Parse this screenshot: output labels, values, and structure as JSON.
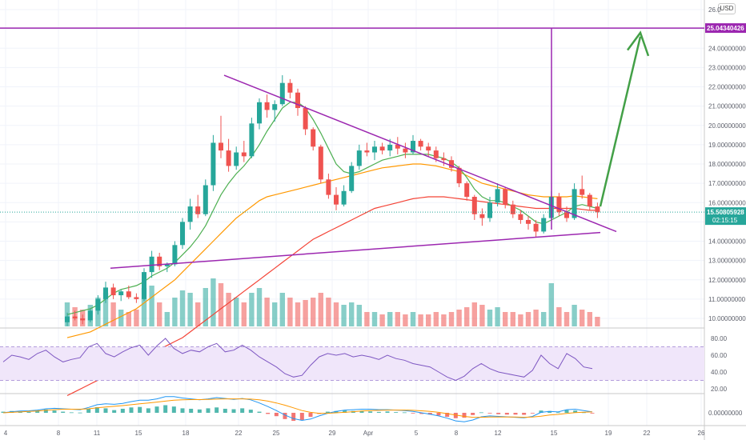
{
  "currency_badge": "USD",
  "price_axis_labels": [
    "26.0",
    "24.00000000",
    "23.00000000",
    "22.00000000",
    "21.00000000",
    "20.00000000",
    "19.00000000",
    "18.00000000",
    "17.00000000",
    "16.00000000",
    "14.00000000",
    "13.00000000",
    "12.00000000",
    "11.00000000",
    "10.00000000"
  ],
  "time_axis_labels": [
    "4",
    "8",
    "11",
    "15",
    "18",
    "22",
    "25",
    "29",
    "Apr",
    "5",
    "8",
    "12",
    "15",
    "19",
    "22",
    "26"
  ],
  "resistance_label": "25.04340426",
  "last_price": "15.50805928",
  "countdown": "02:15:15",
  "rsi_axis_labels": [
    "80.00",
    "60.00",
    "40.00",
    "20.00"
  ],
  "macd_axis_labels": [
    "0.00000000"
  ],
  "colors": {
    "up": "#26a69a",
    "down": "#ef5350",
    "ma_fast": "#4caf50",
    "ma_mid": "#ff9800",
    "ma_slow": "#f44336",
    "trend": "#9c27b0",
    "arrow": "#43a047",
    "rsi": "#7e57c2",
    "rsi_band": "#f0e6fa",
    "price_tag": "#26a69a",
    "level_tag": "#9c27b0"
  },
  "chart_data": {
    "type": "candlestick",
    "price_range": [
      9.8,
      26.2
    ],
    "candles": [
      [
        9.8,
        10.3,
        9.6,
        10.1
      ],
      [
        10.1,
        10.4,
        9.9,
        10.0
      ],
      [
        10.0,
        10.2,
        9.7,
        9.9
      ],
      [
        9.9,
        10.5,
        9.8,
        10.4
      ],
      [
        10.4,
        11.2,
        10.2,
        11.0
      ],
      [
        11.0,
        11.9,
        10.8,
        11.6
      ],
      [
        11.6,
        11.8,
        11.0,
        11.2
      ],
      [
        11.2,
        11.5,
        10.9,
        11.4
      ],
      [
        11.4,
        11.7,
        11.0,
        11.1
      ],
      [
        11.1,
        11.3,
        10.8,
        11.0
      ],
      [
        11.0,
        12.6,
        10.9,
        12.4
      ],
      [
        12.4,
        13.5,
        12.1,
        13.2
      ],
      [
        13.2,
        13.4,
        12.5,
        12.7
      ],
      [
        12.7,
        12.9,
        12.4,
        12.8
      ],
      [
        12.8,
        14.0,
        12.7,
        13.8
      ],
      [
        13.8,
        15.2,
        13.6,
        15.0
      ],
      [
        15.0,
        16.2,
        14.6,
        15.8
      ],
      [
        15.8,
        16.4,
        15.2,
        15.4
      ],
      [
        15.4,
        17.2,
        15.3,
        16.9
      ],
      [
        16.9,
        19.5,
        16.6,
        19.1
      ],
      [
        19.1,
        20.5,
        18.3,
        18.7
      ],
      [
        18.7,
        19.3,
        17.6,
        17.9
      ],
      [
        17.9,
        18.9,
        17.7,
        18.6
      ],
      [
        18.6,
        19.2,
        18.1,
        18.4
      ],
      [
        18.4,
        20.4,
        18.3,
        20.1
      ],
      [
        20.1,
        21.4,
        19.8,
        21.2
      ],
      [
        21.2,
        21.6,
        20.4,
        20.8
      ],
      [
        20.8,
        21.3,
        20.2,
        21.1
      ],
      [
        21.1,
        22.6,
        21.0,
        22.2
      ],
      [
        22.2,
        22.4,
        21.4,
        21.7
      ],
      [
        21.7,
        21.9,
        20.5,
        20.9
      ],
      [
        20.9,
        21.0,
        19.5,
        19.8
      ],
      [
        19.8,
        19.9,
        18.7,
        18.9
      ],
      [
        18.9,
        19.0,
        17.0,
        17.2
      ],
      [
        17.2,
        17.5,
        16.2,
        16.4
      ],
      [
        16.4,
        16.8,
        15.6,
        15.9
      ],
      [
        15.9,
        16.9,
        15.8,
        16.6
      ],
      [
        16.6,
        18.1,
        16.5,
        17.9
      ],
      [
        17.9,
        19.0,
        17.7,
        18.7
      ],
      [
        18.7,
        19.1,
        18.4,
        18.6
      ],
      [
        18.6,
        19.2,
        18.2,
        18.9
      ],
      [
        18.9,
        19.1,
        18.5,
        18.7
      ],
      [
        18.7,
        19.3,
        18.4,
        19.0
      ],
      [
        19.0,
        19.4,
        18.5,
        18.8
      ],
      [
        18.8,
        19.1,
        18.3,
        18.6
      ],
      [
        18.6,
        19.5,
        18.5,
        19.2
      ],
      [
        19.2,
        19.3,
        18.7,
        18.9
      ],
      [
        18.9,
        19.1,
        18.4,
        18.7
      ],
      [
        18.7,
        18.9,
        18.1,
        18.3
      ],
      [
        18.3,
        18.6,
        17.9,
        18.2
      ],
      [
        18.2,
        18.4,
        17.6,
        17.8
      ],
      [
        17.8,
        17.9,
        16.8,
        17.0
      ],
      [
        17.0,
        17.1,
        16.1,
        16.3
      ],
      [
        16.3,
        16.4,
        15.1,
        15.4
      ],
      [
        15.4,
        15.7,
        14.8,
        15.2
      ],
      [
        15.2,
        16.3,
        15.0,
        16.0
      ],
      [
        16.0,
        17.0,
        15.8,
        16.7
      ],
      [
        16.7,
        16.8,
        15.7,
        15.9
      ],
      [
        15.9,
        16.1,
        15.2,
        15.4
      ],
      [
        15.4,
        15.6,
        14.9,
        15.1
      ],
      [
        15.1,
        15.3,
        14.6,
        14.9
      ],
      [
        14.9,
        15.1,
        14.2,
        14.5
      ],
      [
        14.5,
        15.4,
        14.4,
        15.2
      ],
      [
        15.2,
        16.6,
        15.1,
        16.3
      ],
      [
        16.3,
        16.5,
        15.3,
        15.5
      ],
      [
        15.5,
        15.8,
        15.0,
        15.2
      ],
      [
        15.2,
        17.0,
        15.1,
        16.7
      ],
      [
        16.7,
        17.4,
        16.2,
        16.4
      ],
      [
        16.4,
        16.5,
        15.6,
        15.8
      ],
      [
        15.8,
        16.0,
        15.2,
        15.5
      ]
    ],
    "ma_fast": [
      10.2,
      10.3,
      10.4,
      10.5,
      10.7,
      11.0,
      11.3,
      11.5,
      11.6,
      11.7,
      11.9,
      12.2,
      12.4,
      12.6,
      12.9,
      13.3,
      13.7,
      14.2,
      14.8,
      15.6,
      16.4,
      17.0,
      17.5,
      17.9,
      18.4,
      19.0,
      19.7,
      20.3,
      20.9,
      21.2,
      21.2,
      20.9,
      20.3,
      19.6,
      18.8,
      18.0,
      17.6,
      17.5,
      17.6,
      17.8,
      18.0,
      18.2,
      18.3,
      18.4,
      18.5,
      18.5,
      18.5,
      18.5,
      18.4,
      18.3,
      18.1,
      17.8,
      17.3,
      16.7,
      16.3,
      16.1,
      16.1,
      16.0,
      15.8,
      15.6,
      15.3,
      15.0,
      14.9,
      15.1,
      15.3,
      15.5,
      15.8,
      15.9,
      15.8,
      15.7
    ],
    "ma_mid": [
      9.0,
      9.1,
      9.2,
      9.3,
      9.5,
      9.7,
      9.9,
      10.1,
      10.3,
      10.5,
      10.8,
      11.1,
      11.4,
      11.7,
      12.0,
      12.4,
      12.8,
      13.2,
      13.6,
      14.0,
      14.4,
      14.8,
      15.2,
      15.5,
      15.8,
      16.1,
      16.3,
      16.4,
      16.5,
      16.6,
      16.7,
      16.8,
      16.9,
      17.0,
      17.1,
      17.2,
      17.3,
      17.4,
      17.5,
      17.6,
      17.7,
      17.8,
      17.85,
      17.9,
      17.95,
      18.0,
      18.0,
      17.95,
      17.9,
      17.8,
      17.7,
      17.6,
      17.4,
      17.2,
      17.0,
      16.9,
      16.8,
      16.7,
      16.6,
      16.5,
      16.4,
      16.35,
      16.3,
      16.3,
      16.3,
      16.3,
      16.35,
      16.3,
      16.25,
      16.2
    ],
    "ma_slow": [
      6.0,
      6.2,
      6.4,
      6.6,
      6.8,
      7.0,
      7.2,
      7.4,
      7.6,
      7.8,
      8.0,
      8.2,
      8.4,
      8.6,
      8.8,
      9.0,
      9.3,
      9.6,
      9.9,
      10.2,
      10.5,
      10.8,
      11.1,
      11.4,
      11.7,
      12.0,
      12.3,
      12.6,
      12.9,
      13.2,
      13.5,
      13.8,
      14.1,
      14.3,
      14.5,
      14.7,
      14.9,
      15.1,
      15.3,
      15.5,
      15.7,
      15.8,
      15.9,
      16.0,
      16.1,
      16.2,
      16.25,
      16.3,
      16.3,
      16.3,
      16.25,
      16.2,
      16.15,
      16.1,
      16.05,
      16.0,
      15.95,
      15.9,
      15.85,
      15.8,
      15.75,
      15.7,
      15.7,
      15.7,
      15.7,
      15.7,
      15.7,
      15.65,
      15.6,
      15.6
    ],
    "volume": [
      0.5,
      0.4,
      0.35,
      0.45,
      0.6,
      0.7,
      0.5,
      0.35,
      0.3,
      0.35,
      0.8,
      0.85,
      0.5,
      0.3,
      0.6,
      0.75,
      0.7,
      0.5,
      0.8,
      1.0,
      0.9,
      0.7,
      0.6,
      0.5,
      0.7,
      0.8,
      0.6,
      0.5,
      0.7,
      0.6,
      0.5,
      0.55,
      0.6,
      0.7,
      0.6,
      0.5,
      0.45,
      0.5,
      0.45,
      0.3,
      0.3,
      0.25,
      0.3,
      0.3,
      0.25,
      0.3,
      0.25,
      0.25,
      0.3,
      0.25,
      0.3,
      0.35,
      0.4,
      0.5,
      0.45,
      0.35,
      0.4,
      0.3,
      0.3,
      0.25,
      0.3,
      0.35,
      0.3,
      0.9,
      0.4,
      0.3,
      0.45,
      0.35,
      0.3,
      0.2
    ],
    "rsi": [
      52,
      60,
      58,
      55,
      62,
      66,
      58,
      52,
      55,
      57,
      70,
      74,
      62,
      58,
      64,
      69,
      72,
      60,
      71,
      80,
      68,
      62,
      66,
      64,
      70,
      74,
      64,
      66,
      72,
      66,
      58,
      52,
      46,
      38,
      34,
      36,
      48,
      58,
      62,
      60,
      62,
      58,
      60,
      58,
      55,
      60,
      56,
      54,
      50,
      48,
      46,
      40,
      34,
      30,
      35,
      44,
      50,
      44,
      40,
      38,
      36,
      34,
      42,
      60,
      50,
      44,
      62,
      56,
      46,
      44
    ],
    "macd_hist": [
      0.05,
      0.08,
      0.06,
      0.04,
      0.1,
      0.15,
      0.1,
      0.05,
      0.02,
      0.01,
      0.18,
      0.25,
      0.2,
      0.12,
      0.18,
      0.24,
      0.26,
      0.2,
      0.28,
      0.34,
      0.28,
      0.2,
      0.18,
      0.15,
      0.2,
      0.24,
      0.18,
      0.16,
      0.2,
      0.14,
      0.05,
      -0.05,
      -0.15,
      -0.28,
      -0.36,
      -0.32,
      -0.18,
      -0.05,
      0.05,
      0.08,
      0.1,
      0.08,
      0.07,
      0.06,
      0.04,
      0.06,
      0.03,
      0.02,
      -0.02,
      -0.05,
      -0.08,
      -0.12,
      -0.18,
      -0.24,
      -0.22,
      -0.1,
      0.02,
      -0.02,
      -0.06,
      -0.08,
      -0.08,
      -0.09,
      -0.02,
      0.1,
      0.08,
      0.02,
      0.12,
      0.1,
      0.02,
      -0.03
    ],
    "macd_line": [
      0.0,
      0.05,
      0.08,
      0.09,
      0.12,
      0.18,
      0.2,
      0.18,
      0.16,
      0.14,
      0.24,
      0.36,
      0.4,
      0.38,
      0.42,
      0.5,
      0.56,
      0.56,
      0.62,
      0.72,
      0.72,
      0.66,
      0.62,
      0.58,
      0.62,
      0.68,
      0.64,
      0.6,
      0.64,
      0.58,
      0.44,
      0.28,
      0.1,
      -0.1,
      -0.26,
      -0.34,
      -0.28,
      -0.14,
      -0.02,
      0.06,
      0.12,
      0.14,
      0.16,
      0.16,
      0.14,
      0.14,
      0.12,
      0.1,
      0.06,
      0.0,
      -0.06,
      -0.14,
      -0.24,
      -0.36,
      -0.4,
      -0.32,
      -0.18,
      -0.14,
      -0.16,
      -0.18,
      -0.2,
      -0.22,
      -0.16,
      0.02,
      0.06,
      0.04,
      0.14,
      0.16,
      0.1,
      0.04
    ],
    "macd_signal": [
      0.0,
      0.02,
      0.04,
      0.06,
      0.08,
      0.11,
      0.14,
      0.16,
      0.16,
      0.16,
      0.18,
      0.22,
      0.26,
      0.29,
      0.32,
      0.36,
      0.4,
      0.44,
      0.48,
      0.52,
      0.56,
      0.58,
      0.59,
      0.59,
      0.6,
      0.61,
      0.62,
      0.62,
      0.62,
      0.61,
      0.58,
      0.52,
      0.44,
      0.34,
      0.22,
      0.1,
      0.02,
      -0.02,
      -0.02,
      0.0,
      0.02,
      0.05,
      0.08,
      0.1,
      0.11,
      0.12,
      0.12,
      0.12,
      0.11,
      0.09,
      0.06,
      0.02,
      -0.04,
      -0.1,
      -0.16,
      -0.2,
      -0.2,
      -0.19,
      -0.19,
      -0.19,
      -0.19,
      -0.2,
      -0.19,
      -0.15,
      -0.1,
      -0.07,
      -0.03,
      0.01,
      0.03,
      0.04
    ],
    "trendlines": {
      "descending": [
        [
          22.6,
          14.5
        ]
      ],
      "ascending": [
        [
          12.5,
          14.4
        ]
      ],
      "resistance": 25.04340426
    }
  }
}
